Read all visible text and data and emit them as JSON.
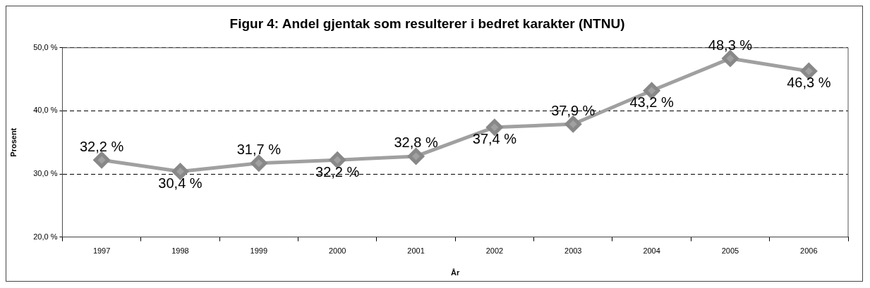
{
  "chart_data": {
    "type": "line",
    "title": "Figur 4: Andel gjentak som resulterer i bedret karakter (NTNU)",
    "xlabel": "År",
    "ylabel": "Prosent",
    "categories": [
      "1997",
      "1998",
      "1999",
      "2000",
      "2001",
      "2002",
      "2003",
      "2004",
      "2005",
      "2006"
    ],
    "series": [
      {
        "color": "#a0a0a0",
        "values": [
          32.2,
          30.4,
          31.7,
          32.2,
          32.8,
          37.4,
          37.9,
          43.2,
          48.3,
          46.3
        ],
        "value_labels": [
          "32,2 %",
          "30,4 %",
          "31,7 %",
          "32,2 %",
          "32,8 %",
          "37,4 %",
          "37,9 %",
          "43,2 %",
          "48,3 %",
          "46,3 %"
        ]
      }
    ],
    "ylim": [
      20,
      50
    ],
    "yticks": [
      {
        "value": 20,
        "label": "20,0 %"
      },
      {
        "value": 30,
        "label": "30,0 %"
      },
      {
        "value": 40,
        "label": "40,0 %"
      },
      {
        "value": 50,
        "label": "50,0 %"
      }
    ],
    "grid": "y",
    "marker": "diamond",
    "line_style": "solid",
    "legend": false
  }
}
